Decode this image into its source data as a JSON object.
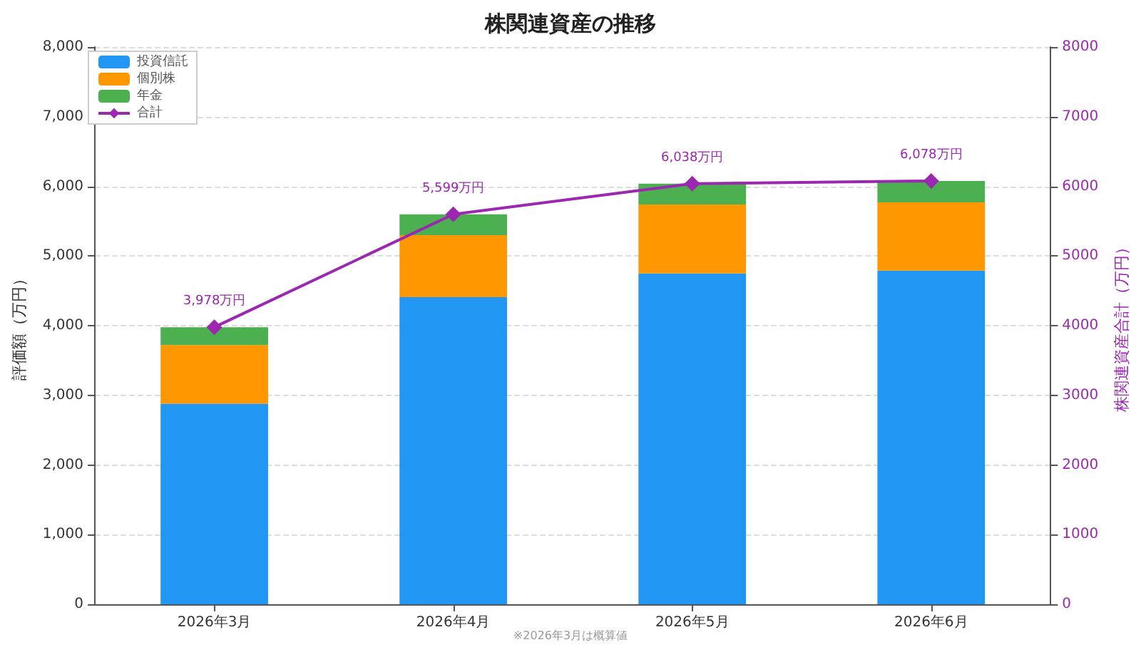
{
  "chart_data": {
    "type": "bar",
    "title": "株関連資産の推移",
    "ylabel": "評価額（万円）",
    "y2label": "株関連資産合計（万円）",
    "categories": [
      "2026年3月",
      "2026年4月",
      "2026年5月",
      "2026年6月"
    ],
    "stacked": true,
    "series": [
      {
        "name": "投資信託",
        "color": "#2196f3",
        "values": [
          2880,
          4410,
          4750,
          4790
        ]
      },
      {
        "name": "個別株",
        "color": "#ff9800",
        "values": [
          840,
          890,
          990,
          980
        ]
      },
      {
        "name": "年金",
        "color": "#4caf50",
        "values": [
          258,
          299,
          298,
          308
        ]
      },
      {
        "name": "合計",
        "type": "line",
        "axis": "y2",
        "color": "#9c27b0",
        "marker": "diamond",
        "values": [
          3978,
          5599,
          6038,
          6078
        ],
        "value_labels": [
          "3,978万円",
          "5,599万円",
          "6,038万円",
          "6,078万円"
        ]
      }
    ],
    "ylim": [
      0,
      8000
    ],
    "yticks": [
      0,
      {
        "value": 1000,
        "label": "1,000"
      },
      {
        "value": 2000,
        "label": "2,000"
      },
      {
        "value": 3000,
        "label": "3,000"
      },
      {
        "value": 4000,
        "label": "4,000"
      },
      {
        "value": 5000,
        "label": "5,000"
      },
      {
        "value": 6000,
        "label": "6,000"
      },
      {
        "value": 7000,
        "label": "7,000"
      },
      {
        "value": 8000,
        "label": "8,000"
      }
    ],
    "y2lim": [
      0,
      8000
    ],
    "y2ticks": [
      0,
      1000,
      2000,
      3000,
      4000,
      5000,
      6000,
      7000,
      8000
    ],
    "grid": "y",
    "legend": "top left",
    "annotations": [
      "※2026年3月は概算値"
    ]
  }
}
